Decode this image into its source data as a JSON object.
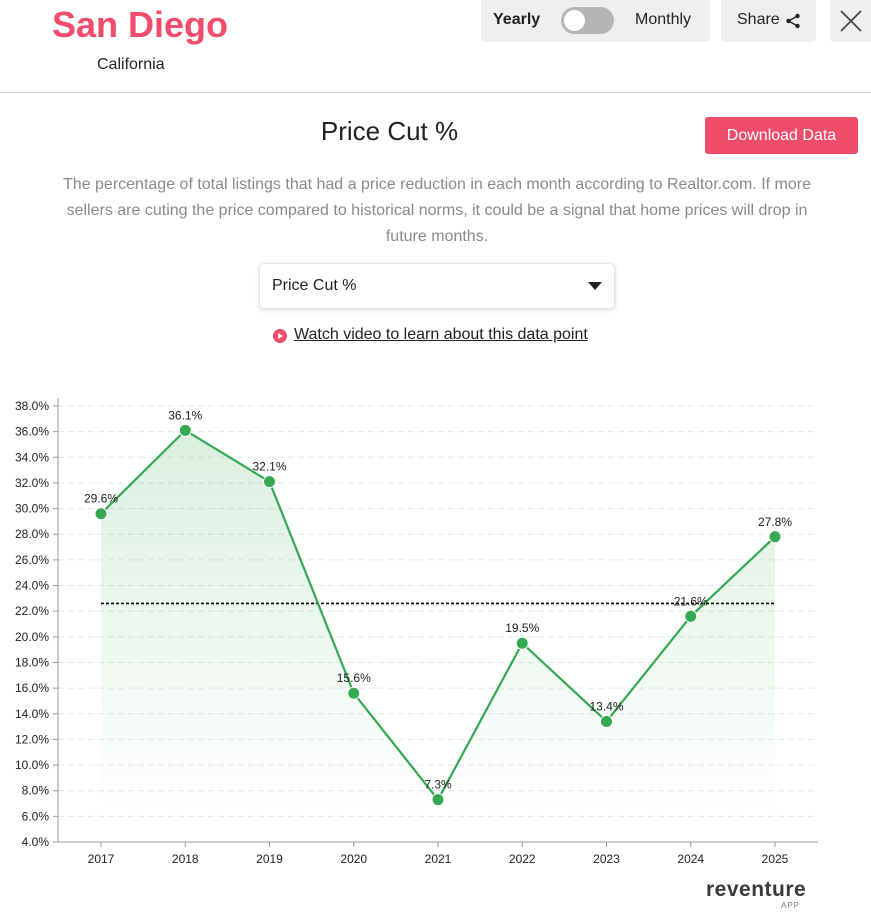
{
  "header": {
    "city": "San Diego",
    "state": "California",
    "toggle": {
      "left_label": "Yearly",
      "right_label": "Monthly",
      "selected": "Yearly"
    },
    "share_label": "Share",
    "share_icon": "share-icon",
    "close_icon": "close-icon"
  },
  "main": {
    "title": "Price Cut %",
    "download_label": "Download Data",
    "description": "The percentage of total listings that had a price reduction in each month according to Realtor.com. If more sellers are cuting the price compared to historical norms, it could be a signal that home prices will drop in future months.",
    "select_value": "Price Cut %",
    "video_link": "Watch video to learn about this data point"
  },
  "colors": {
    "accent": "#ef4d6b",
    "series": "#34a853",
    "fill": "#34a853",
    "average_line": "#000000"
  },
  "chart_data": {
    "type": "line",
    "x": [
      "2017",
      "2018",
      "2019",
      "2020",
      "2021",
      "2022",
      "2023",
      "2024",
      "2025"
    ],
    "series": [
      {
        "values": [
          29.6,
          36.1,
          32.1,
          15.6,
          7.3,
          19.5,
          13.4,
          21.6,
          27.8
        ],
        "labels": [
          "29.6%",
          "36.1%",
          "32.1%",
          "15.6%",
          "7.3%",
          "19.5%",
          "13.4%",
          "21.6%",
          "27.8%"
        ]
      }
    ],
    "average_line": 22.6,
    "ylim": [
      4,
      38
    ],
    "yticks": [
      "4.0%",
      "6.0%",
      "8.0%",
      "10.0%",
      "12.0%",
      "14.0%",
      "16.0%",
      "18.0%",
      "20.0%",
      "22.0%",
      "24.0%",
      "26.0%",
      "28.0%",
      "30.0%",
      "32.0%",
      "34.0%",
      "36.0%",
      "38.0%"
    ],
    "grid": true,
    "area_fill": true,
    "title": "",
    "xlabel": "",
    "ylabel": ""
  },
  "footer": {
    "brand": "reventure",
    "brand_sub": "APP"
  }
}
